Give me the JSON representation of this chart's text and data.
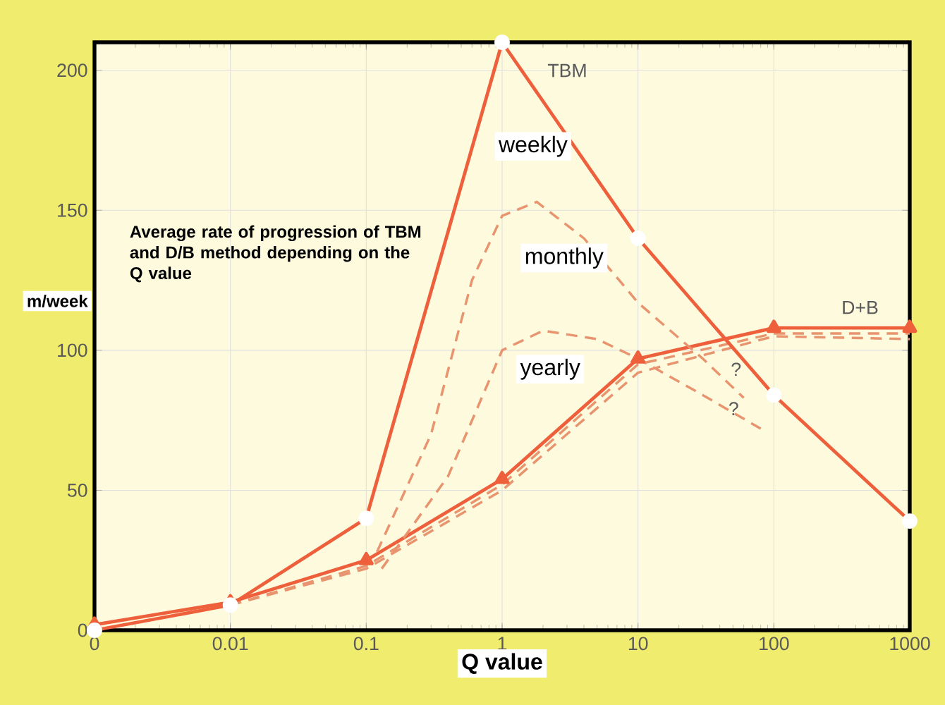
{
  "chart_data": {
    "type": "line",
    "title": "Average rate of progression of TBM and D/B method depending on the Q value",
    "xlabel": "Q value",
    "ylabel": "m/week",
    "log": "x",
    "grid": true,
    "xlim": [
      0.001,
      1000
    ],
    "xticks": [
      {
        "value": 0.001,
        "label": "0"
      },
      {
        "value": 0.01,
        "label": "0.01"
      },
      {
        "value": 0.1,
        "label": "0.1"
      },
      1,
      10,
      100,
      1000
    ],
    "ylim": [
      0,
      210
    ],
    "yticks": [
      0,
      50,
      100,
      150,
      200
    ],
    "series": [
      {
        "color": "#ee5f3c",
        "marker": "circle",
        "line_style": "solid",
        "x": [
          0.001,
          0.01,
          0.1,
          1,
          10,
          100,
          1000
        ],
        "values": [
          0,
          9,
          40,
          210,
          140,
          84,
          39
        ]
      },
      {
        "color": "#e8946e",
        "marker": "none",
        "line_style": "dashed",
        "x": [
          0.12,
          0.3,
          0.6,
          1,
          1.8,
          4,
          10,
          30,
          60
        ],
        "values": [
          28,
          70,
          125,
          148,
          153,
          140,
          117,
          97,
          83
        ]
      },
      {
        "color": "#e8946e",
        "marker": "none",
        "line_style": "dashed",
        "x": [
          0.13,
          0.4,
          1,
          2,
          5,
          10,
          30,
          80
        ],
        "values": [
          22,
          55,
          100,
          107,
          104,
          97,
          84,
          72
        ]
      },
      {
        "color": "#e8946e",
        "marker": "none",
        "line_style": "dashed",
        "x": [
          0.01,
          0.1,
          1,
          10,
          100,
          1000
        ],
        "values": [
          9,
          22,
          50,
          92,
          105,
          104
        ]
      },
      {
        "color": "#e8946e",
        "marker": "none",
        "line_style": "dashed",
        "x": [
          0.01,
          0.1,
          1,
          10,
          100,
          1000
        ],
        "values": [
          9,
          23,
          52,
          95,
          106,
          106
        ]
      },
      {
        "color": "#ee5f3c",
        "marker": "triangle",
        "line_style": "solid",
        "x": [
          0.001,
          0.01,
          0.1,
          1,
          10,
          100,
          1000
        ],
        "values": [
          2,
          10,
          25,
          54,
          97,
          108,
          108
        ]
      }
    ],
    "annotations": [
      "TBM",
      "weekly",
      "yearly",
      "monthly",
      "D+B",
      "?",
      "?"
    ]
  }
}
